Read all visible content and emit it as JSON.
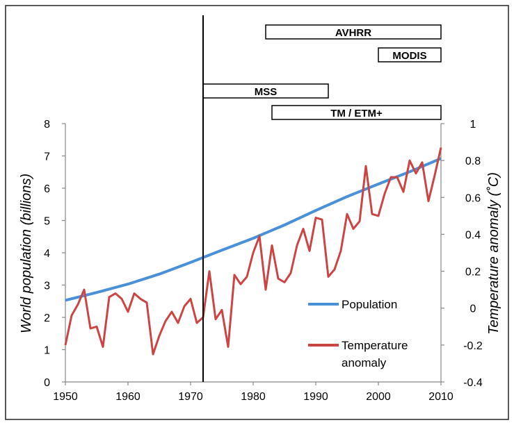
{
  "chart_data": {
    "type": "line",
    "title": "",
    "xlabel": "",
    "ylabel": "World population (billions)",
    "y2label": "Temperature anomaly (˚C)",
    "xlim": [
      1950,
      2010
    ],
    "ylim": [
      0,
      8
    ],
    "y2lim": [
      -0.4,
      1
    ],
    "x_ticks": [
      "1950",
      "1960",
      "1970",
      "1980",
      "1990",
      "2000",
      "2010"
    ],
    "y_ticks": [
      "0",
      "1",
      "2",
      "3",
      "4",
      "5",
      "6",
      "7",
      "8"
    ],
    "y2_ticks": [
      "-0.4",
      "-0.2",
      "0",
      "0.2",
      "0.4",
      "0.6",
      "0.8",
      "1"
    ],
    "vertical_line_x": 1972,
    "legend": {
      "placement": "bottom-right",
      "population_label": "Population",
      "temperature_label_line1": "Temperature",
      "temperature_label_line2": "anomaly"
    },
    "series": [
      {
        "name": "Population",
        "axis": "left",
        "color": "#4a90d9",
        "x": [
          1950,
          1955,
          1960,
          1965,
          1970,
          1975,
          1980,
          1985,
          1990,
          1995,
          2000,
          2005,
          2010
        ],
        "values": [
          2.53,
          2.77,
          3.03,
          3.34,
          3.7,
          4.08,
          4.45,
          4.86,
          5.31,
          5.74,
          6.13,
          6.51,
          6.92
        ]
      },
      {
        "name": "Temperature anomaly",
        "axis": "right",
        "color": "#cc4444",
        "x": [
          1950,
          1951,
          1952,
          1953,
          1954,
          1955,
          1956,
          1957,
          1958,
          1959,
          1960,
          1961,
          1962,
          1963,
          1964,
          1965,
          1966,
          1967,
          1968,
          1969,
          1970,
          1971,
          1972,
          1973,
          1974,
          1975,
          1976,
          1977,
          1978,
          1979,
          1980,
          1981,
          1982,
          1983,
          1984,
          1985,
          1986,
          1987,
          1988,
          1989,
          1990,
          1991,
          1992,
          1993,
          1994,
          1995,
          1996,
          1997,
          1998,
          1999,
          2000,
          2001,
          2002,
          2003,
          2004,
          2005,
          2006,
          2007,
          2008,
          2009,
          2010
        ],
        "values": [
          -0.2,
          -0.04,
          0.02,
          0.1,
          -0.11,
          -0.1,
          -0.21,
          0.06,
          0.08,
          0.05,
          -0.02,
          0.08,
          0.05,
          0.03,
          -0.25,
          -0.15,
          -0.07,
          -0.02,
          -0.08,
          0.01,
          0.05,
          -0.08,
          -0.05,
          0.2,
          -0.06,
          -0.01,
          -0.21,
          0.18,
          0.13,
          0.17,
          0.3,
          0.39,
          0.1,
          0.34,
          0.16,
          0.14,
          0.19,
          0.34,
          0.43,
          0.31,
          0.49,
          0.48,
          0.17,
          0.21,
          0.31,
          0.51,
          0.43,
          0.47,
          0.77,
          0.51,
          0.5,
          0.62,
          0.71,
          0.71,
          0.63,
          0.8,
          0.73,
          0.79,
          0.58,
          0.72,
          0.87
        ]
      }
    ],
    "sensors": [
      {
        "name": "AVHRR",
        "start": 1982,
        "end": 2010,
        "row": 0
      },
      {
        "name": "MODIS",
        "start": 2000,
        "end": 2010,
        "row": 1
      },
      {
        "name": "MSS",
        "start": 1972,
        "end": 1992,
        "row": 2
      },
      {
        "name": "TM / ETM+",
        "start": 1983,
        "end": 2010,
        "row": 3
      }
    ]
  }
}
